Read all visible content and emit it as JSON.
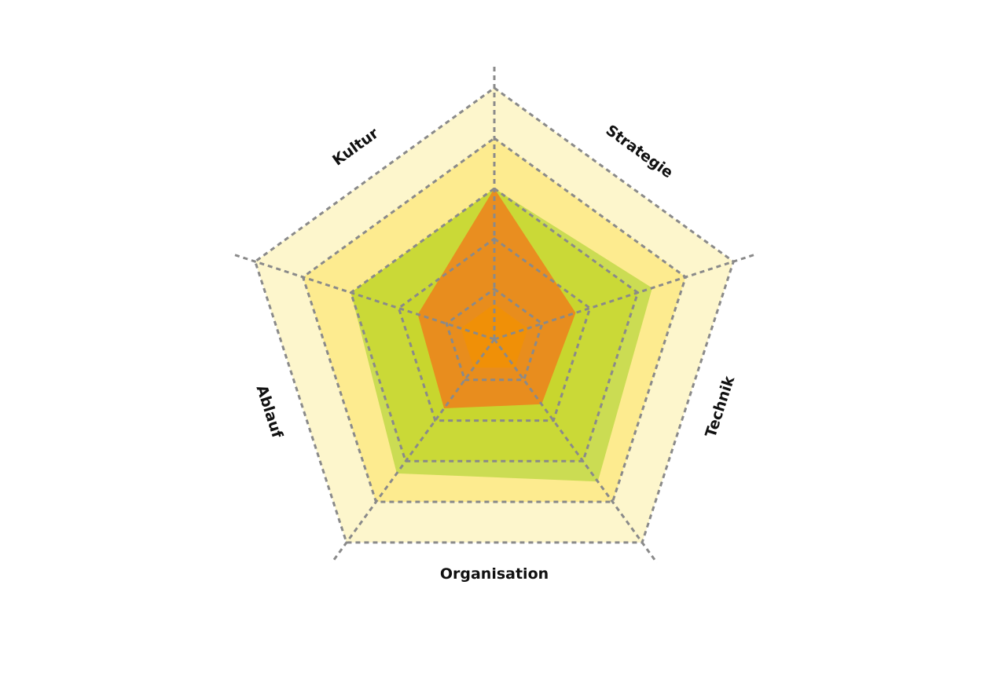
{
  "chart_data": {
    "type": "radar",
    "title": "",
    "categories": [
      "Strategie",
      "Technik",
      "Organisation",
      "Ablauf",
      "Kultur"
    ],
    "rlim": [
      0,
      5
    ],
    "levels": 5,
    "grid": true,
    "band_colors": [
      "#fdf6cc",
      "#fdeb8f",
      "#f9e02e",
      "#f3d80c",
      "#f0d400"
    ],
    "series": [
      {
        "values": [
          3.0,
          3.3,
          3.5,
          3.3,
          3.0
        ],
        "color": "#b7d63c",
        "opacity": 0.72
      },
      {
        "values": [
          3.0,
          1.7,
          1.6,
          1.7,
          1.6
        ],
        "color": "#f07a1a",
        "opacity": 0.8
      },
      {
        "values": [
          0.7,
          0.7,
          0.7,
          0.7,
          0.7
        ],
        "color": "#f39200",
        "opacity": 0.75
      }
    ]
  }
}
